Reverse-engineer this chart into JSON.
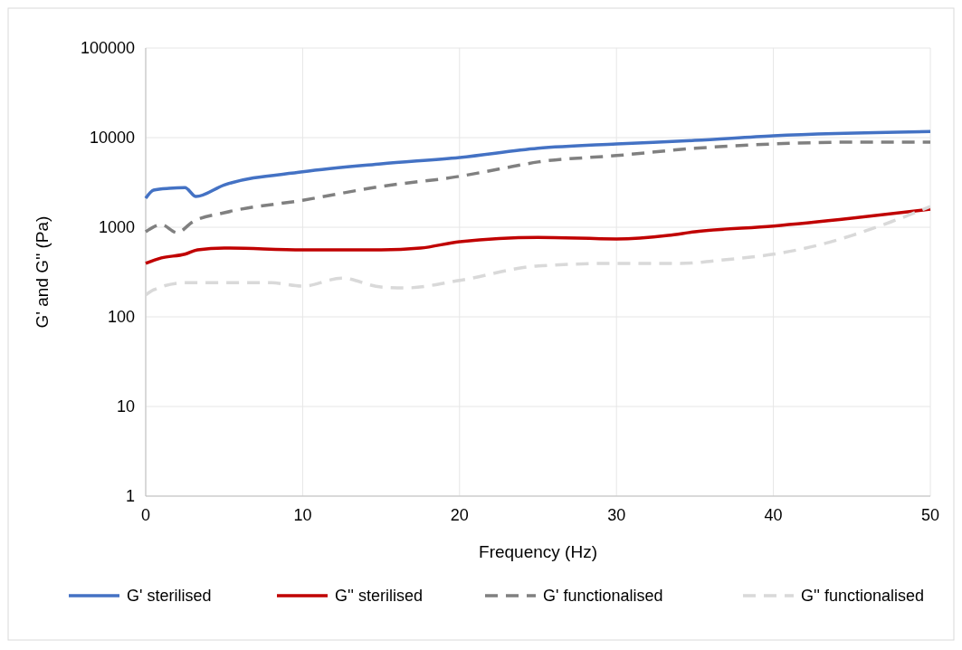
{
  "chart_data": {
    "type": "line",
    "xlabel": "Frequency (Hz)",
    "ylabel": "G' and G'' (Pa)",
    "log": "y",
    "xlim": [
      0,
      50
    ],
    "xticks": [
      0,
      10,
      20,
      30,
      40,
      50
    ],
    "ylim": [
      1,
      100000
    ],
    "yticks": [
      1,
      10,
      100,
      1000,
      10000,
      100000
    ],
    "grid": true,
    "legend": "bottom",
    "marker": "none",
    "series": [
      {
        "name": "G' sterilised",
        "color": "#4472c4",
        "line_style": "solid",
        "x": [
          0,
          0.5,
          1.5,
          2.5,
          3.2,
          5,
          10,
          15,
          20,
          25,
          30,
          35,
          40,
          50
        ],
        "values": [
          2100,
          2600,
          2720,
          2760,
          2200,
          2960,
          4150,
          5100,
          6000,
          7600,
          8500,
          9300,
          10500,
          11700
        ]
      },
      {
        "name": "G'' sterilised",
        "color": "#c00000",
        "line_style": "solid",
        "x": [
          0,
          1,
          2.5,
          3.3,
          5,
          10,
          15,
          17.5,
          20,
          25,
          30,
          33.3,
          35,
          40,
          45,
          50
        ],
        "values": [
          395,
          455,
          500,
          560,
          585,
          560,
          560,
          585,
          690,
          770,
          740,
          810,
          890,
          1030,
          1260,
          1590
        ]
      },
      {
        "name": "G' functionalised",
        "color": "#808080",
        "line_style": "dashed",
        "x": [
          0,
          1,
          2,
          3,
          5,
          10,
          15,
          20,
          22.5,
          25,
          30,
          35,
          40,
          45,
          50
        ],
        "values": [
          890,
          1070,
          870,
          1150,
          1450,
          2000,
          2850,
          3700,
          4450,
          5350,
          6300,
          7600,
          8500,
          8900,
          8900
        ]
      },
      {
        "name": "G'' functionalised",
        "color": "#d9d9d9",
        "line_style": "dashed",
        "x": [
          0,
          0.5,
          2.5,
          5,
          8,
          10,
          12.5,
          15,
          16.5,
          20,
          25,
          30,
          34,
          37,
          40,
          43,
          45,
          47.5,
          50
        ],
        "values": [
          175,
          200,
          240,
          240,
          240,
          220,
          270,
          215,
          210,
          255,
          370,
          395,
          395,
          435,
          500,
          640,
          810,
          1150,
          1700
        ]
      }
    ]
  }
}
